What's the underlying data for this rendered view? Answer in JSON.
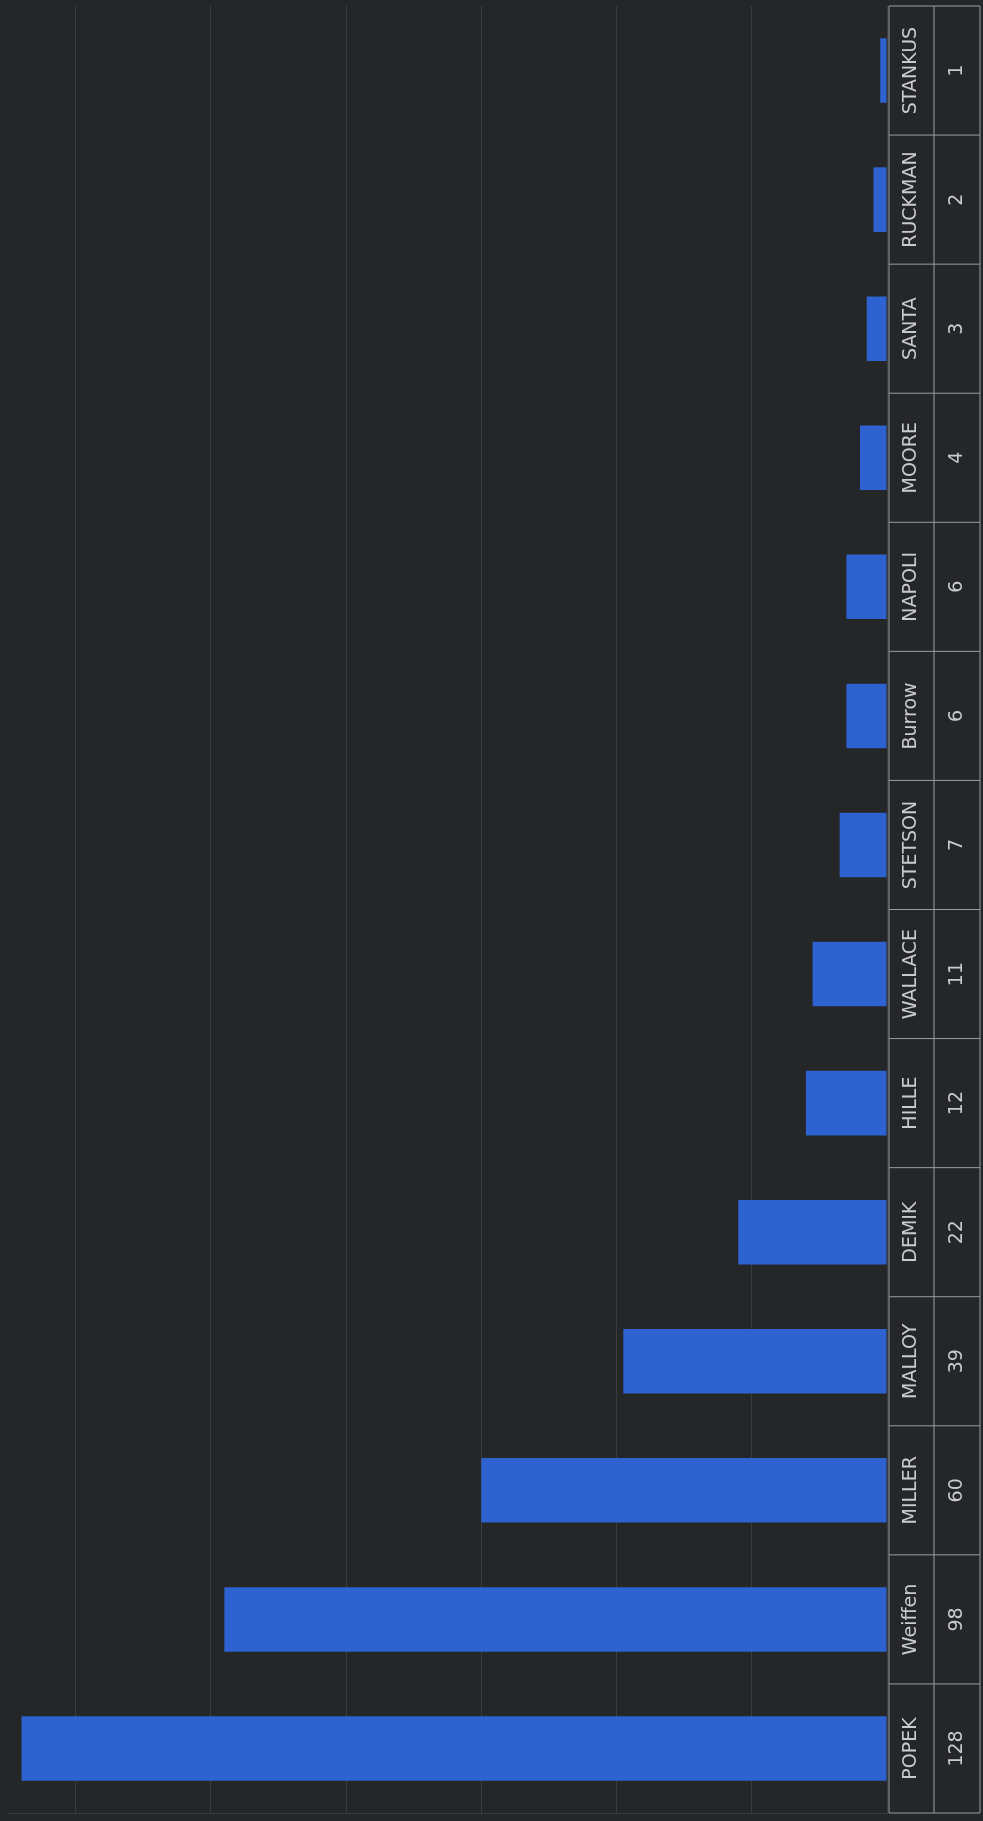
{
  "chart_data": {
    "type": "bar",
    "orientation": "horizontal",
    "categories": [
      "STANKUS",
      "RUCKMAN",
      "SANTA",
      "MOORE",
      "NAPOLI",
      "Burrow",
      "STETSON",
      "WALLACE",
      "HILLE",
      "DEMIK",
      "MALLOY",
      "MILLER",
      "Weiffen",
      "POPEK"
    ],
    "values": [
      1,
      2,
      3,
      4,
      6,
      6,
      7,
      11,
      12,
      22,
      39,
      60,
      98,
      128
    ],
    "color": "#2d62d0",
    "data_labels": true,
    "grid": "x",
    "xlim": [
      130,
      0
    ],
    "xticks": [
      {
        "value": 0,
        "label": null
      },
      {
        "value": 20,
        "label": null
      },
      {
        "value": 40,
        "label": null
      },
      {
        "value": 60,
        "label": null
      },
      {
        "value": 80,
        "label": null
      },
      {
        "value": 100,
        "label": null
      },
      {
        "value": 120,
        "label": null
      }
    ]
  }
}
